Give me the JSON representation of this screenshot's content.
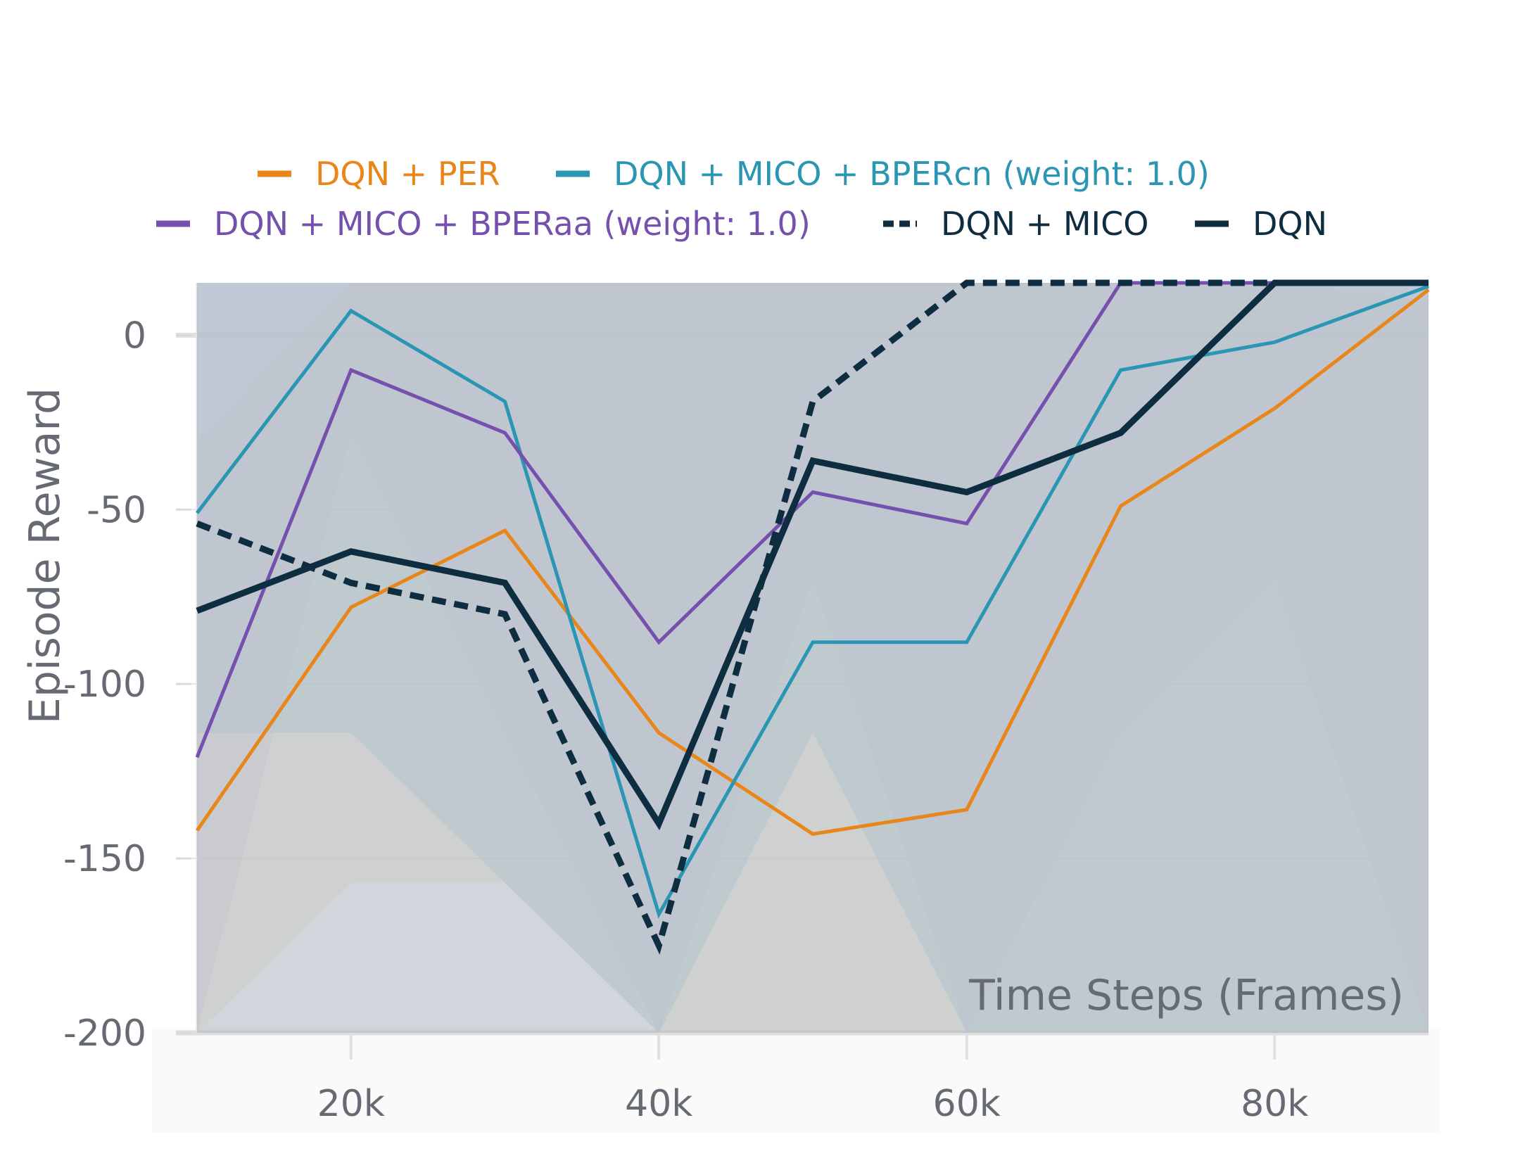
{
  "chart_data": {
    "type": "line",
    "x": [
      10000,
      20000,
      30000,
      40000,
      50000,
      60000,
      70000,
      80000,
      90000
    ],
    "xticks": [
      "20k",
      "40k",
      "60k",
      "80k"
    ],
    "xtick_values": [
      20000,
      40000,
      60000,
      80000
    ],
    "yticks": [
      "0",
      "-50",
      "-100",
      "-150",
      "-200"
    ],
    "ytick_values": [
      0,
      -50,
      -100,
      -150,
      -200
    ],
    "xlabel": "Time Steps (Frames)",
    "ylabel": "Episode Reward",
    "xlim": [
      10000,
      90000
    ],
    "ylim": [
      -200,
      15
    ],
    "grid": true,
    "legend_position": "top",
    "series": [
      {
        "name": "DQN + PER",
        "color": "#e8861a",
        "style": "solid",
        "values": [
          -142,
          -78,
          -56,
          -114,
          -143,
          -136,
          -49,
          -21,
          13
        ],
        "lower": [
          -200,
          -157,
          -157,
          -200,
          -200,
          -200,
          -200,
          -200,
          -200
        ],
        "upper": [
          -30,
          15,
          15,
          15,
          15,
          15,
          15,
          15,
          10
        ]
      },
      {
        "name": "DQN + MICO + BPERcn (weight: 1.0)",
        "color": "#2a96b3",
        "style": "solid",
        "values": [
          -51,
          7,
          -19,
          -166,
          -88,
          -88,
          -10,
          -2,
          14
        ],
        "lower": [
          -114,
          -114,
          -157,
          -200,
          -114,
          -200,
          -200,
          -200,
          -200
        ],
        "upper": [
          15,
          15,
          15,
          15,
          15,
          15,
          15,
          15,
          15
        ]
      },
      {
        "name": "DQN + MICO + BPERaa (weight: 1.0)",
        "color": "#7650ad",
        "style": "solid",
        "values": [
          -121,
          -10,
          -28,
          -88,
          -45,
          -54,
          15,
          15,
          15
        ],
        "lower": [
          -200,
          -28,
          -114,
          -200,
          -70,
          -200,
          -114,
          -70,
          -200
        ],
        "upper": [
          15,
          15,
          15,
          15,
          15,
          15,
          15,
          15,
          15
        ]
      },
      {
        "name": "DQN + MICO",
        "color": "#0e2d40",
        "style": "dashed",
        "values": [
          -54,
          -71,
          -80,
          -175,
          -19,
          15,
          15,
          15,
          15
        ],
        "lower": [
          -200,
          -200,
          -200,
          -200,
          -200,
          -200,
          -200,
          -200,
          -200
        ],
        "upper": [
          15,
          15,
          15,
          15,
          15,
          15,
          15,
          15,
          15
        ]
      },
      {
        "name": "DQN",
        "color": "#0e2d40",
        "style": "solid",
        "values": [
          -79,
          -62,
          -71,
          -140,
          -36,
          -45,
          -28,
          15,
          15
        ],
        "lower": [
          -200,
          -200,
          -200,
          -200,
          -200,
          -200,
          -200,
          -200,
          -200
        ],
        "upper": [
          15,
          15,
          15,
          15,
          15,
          15,
          15,
          15,
          15
        ]
      }
    ]
  }
}
